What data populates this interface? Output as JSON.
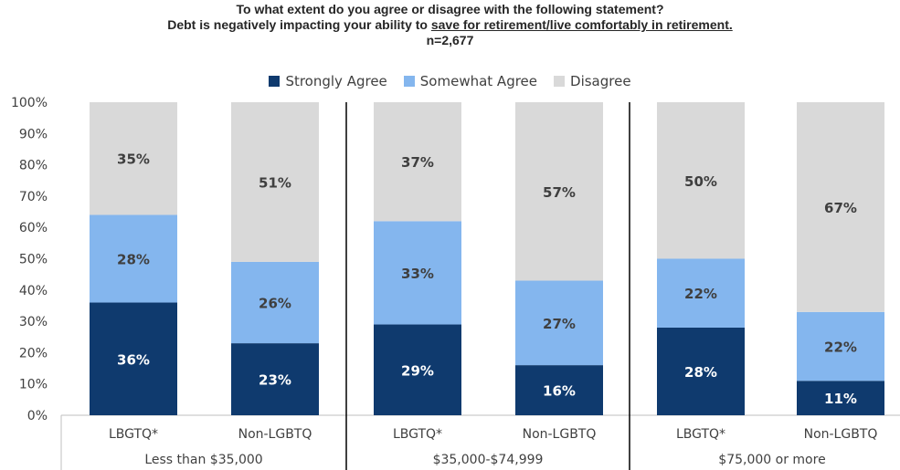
{
  "title": {
    "line1": "To what extent do you agree or disagree with the following statement?",
    "line2_prefix": "Debt is negatively impacting your ability to ",
    "line2_underlined": "save for retirement/live comfortably in retirement.",
    "line3": "n=2,677"
  },
  "colors": {
    "strongly_agree": "#0f3a6e",
    "somewhat_agree": "#84b6ee",
    "disagree": "#d9d9d9",
    "label_dark_bg": "#ffffff",
    "label_light_bg": "#3f3f3f"
  },
  "chart_data": {
    "type": "bar",
    "stacked": true,
    "ylim": [
      0,
      100
    ],
    "yticks": [
      "0%",
      "10%",
      "20%",
      "30%",
      "40%",
      "50%",
      "60%",
      "70%",
      "80%",
      "90%",
      "100%"
    ],
    "legend_position": "top",
    "groups": [
      "Less than $35,000",
      "$35,000-$74,999",
      "$75,000 or more"
    ],
    "categories": [
      "LBGTQ*",
      "Non-LGBTQ",
      "LBGTQ*",
      "Non-LGBTQ",
      "LBGTQ*",
      "Non-LGBTQ"
    ],
    "series": [
      {
        "name": "Strongly Agree",
        "values": [
          36,
          23,
          29,
          16,
          28,
          11
        ],
        "labels": [
          "36%",
          "23%",
          "29%",
          "16%",
          "28%",
          "11%"
        ]
      },
      {
        "name": "Somewhat Agree",
        "values": [
          28,
          26,
          33,
          27,
          22,
          22
        ],
        "labels": [
          "28%",
          "26%",
          "33%",
          "27%",
          "22%",
          "22%"
        ]
      },
      {
        "name": "Disagree",
        "values": [
          35,
          51,
          37,
          57,
          50,
          67
        ],
        "labels": [
          "35%",
          "51%",
          "37%",
          "57%",
          "50%",
          "67%"
        ]
      }
    ]
  }
}
